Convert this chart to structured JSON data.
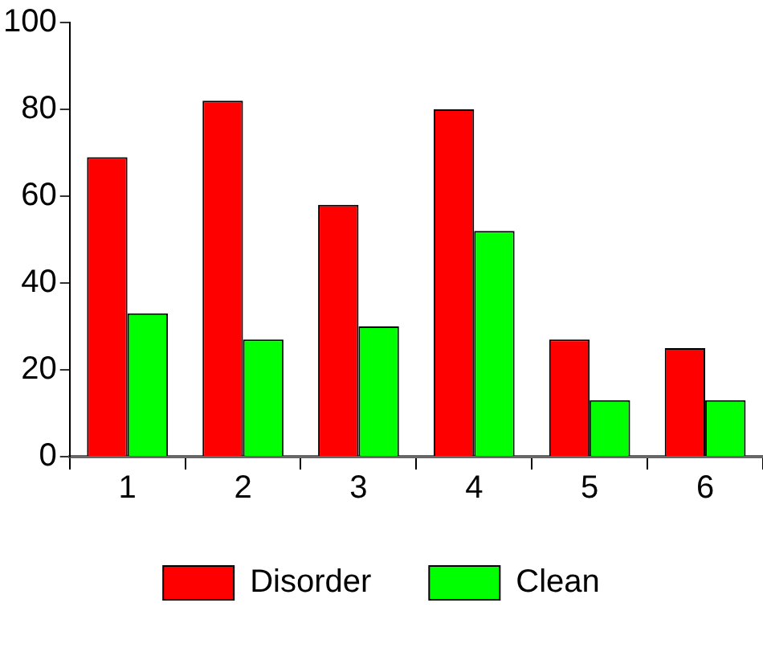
{
  "chart_data": {
    "type": "bar",
    "categories": [
      "1",
      "2",
      "3",
      "4",
      "5",
      "6"
    ],
    "series": [
      {
        "name": "Disorder",
        "color": "#ff0000",
        "values": [
          69,
          82,
          58,
          80,
          27,
          25
        ]
      },
      {
        "name": "Clean",
        "color": "#00ff00",
        "values": [
          33,
          27,
          30,
          52,
          13,
          13
        ]
      }
    ],
    "ylim": [
      0,
      100
    ],
    "yticks": [
      0,
      20,
      40,
      60,
      80,
      100
    ],
    "grid": false,
    "legend": "bottom"
  }
}
